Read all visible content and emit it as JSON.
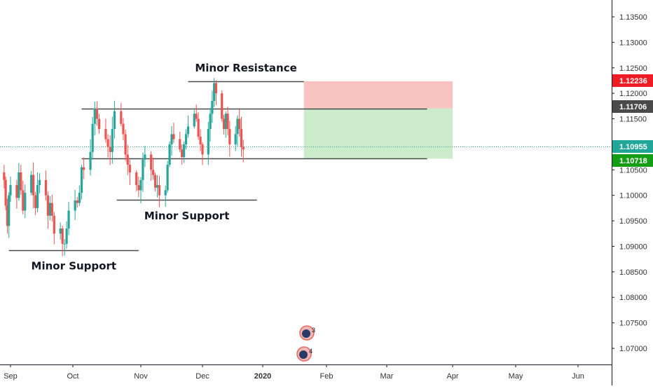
{
  "chart_data": {
    "type": "candlestick",
    "instrument_note": "",
    "y_axis": {
      "range": [
        1.0667,
        1.1395
      ],
      "ticks": [
        "1.13500",
        "1.13000",
        "1.12500",
        "1.12000",
        "1.11500",
        "1.11000",
        "1.10500",
        "1.10000",
        "1.09500",
        "1.09000",
        "1.08500",
        "1.08000",
        "1.07500",
        "1.07000"
      ],
      "tick_values": [
        1.135,
        1.13,
        1.125,
        1.12,
        1.115,
        1.11,
        1.105,
        1.1,
        1.095,
        1.09,
        1.085,
        1.08,
        1.075,
        1.07
      ]
    },
    "x_axis": {
      "labels": [
        "Sep",
        "Oct",
        "Nov",
        "Dec",
        "2020",
        "Feb",
        "Mar",
        "Apr",
        "May",
        "Jun"
      ],
      "label_dates": [
        "2019-09-01",
        "2019-10-01",
        "2019-11-01",
        "2019-12-01",
        "2020-01-01",
        "2020-02-01",
        "2020-03-01",
        "2020-04-01",
        "2020-05-01",
        "2020-06-01"
      ],
      "bold_labels": [
        "2020"
      ]
    },
    "candles_close_path": [
      1.103,
      1.098,
      1.094,
      1.1,
      1.102,
      1.0995,
      1.1045,
      1.101,
      1.097,
      1.1005,
      1.104,
      1.1,
      1.0975,
      1.102,
      1.103,
      1.1,
      1.096,
      1.0985,
      1.096,
      1.0925,
      1.0935,
      1.0905,
      1.0905,
      1.0935,
      1.097,
      1.099,
      1.0985,
      1.1005,
      1.1055,
      1.105,
      1.1085,
      1.114,
      1.117,
      1.115,
      1.113,
      1.111,
      1.1095,
      1.1085,
      1.113,
      1.1165,
      1.114,
      1.112,
      1.108,
      1.106,
      1.1045,
      1.102,
      1.101,
      1.103,
      1.107,
      1.108,
      1.105,
      1.104,
      1.1015,
      1.102,
      1.1,
      1.101,
      1.106,
      1.11,
      1.112,
      1.111,
      1.109,
      1.1075,
      1.11,
      1.112,
      1.1135,
      1.116,
      1.115,
      1.1115,
      1.11,
      1.108,
      1.113,
      1.116,
      1.1185,
      1.122,
      1.12,
      1.115,
      1.113,
      1.116,
      1.113,
      1.11,
      1.112,
      1.115,
      1.113,
      1.1095,
      1.109
    ],
    "candles_start": "2019-08-28",
    "last_price": 1.10955,
    "horizontal_lines": [
      {
        "label": "Minor Resistance",
        "price": 1.12236,
        "from": "2019-11-24",
        "to": "2020-01-21"
      },
      {
        "label": "",
        "price": 1.11706,
        "from": "2019-10-05",
        "to": "2020-03-20"
      },
      {
        "label": "",
        "price": 1.10718,
        "from": "2019-10-05",
        "to": "2020-03-20"
      },
      {
        "label": "Minor Support",
        "price": 1.0991,
        "from": "2019-10-21",
        "to": "2019-12-29"
      },
      {
        "label": "Minor Support",
        "price": 1.0893,
        "from": "2019-08-31",
        "to": "2019-10-31"
      }
    ],
    "position_zones": [
      {
        "kind": "stop",
        "from_price": 1.11706,
        "to_price": 1.12236,
        "from": "2020-01-21",
        "to": "2020-04-01",
        "color": "#f7a9a8"
      },
      {
        "kind": "target",
        "from_price": 1.10718,
        "to_price": 1.11706,
        "from": "2020-01-21",
        "to": "2020-04-01",
        "color": "#b5e2b3"
      }
    ],
    "price_badges": [
      {
        "value": "1.12236",
        "color": "#ee1c25"
      },
      {
        "value": "1.11706",
        "color": "#4a4a4a"
      },
      {
        "value": "1.10955",
        "color": "#22a699"
      },
      {
        "value": "1.10718",
        "color": "#169d16"
      }
    ],
    "event_markers": [
      {
        "count": "3",
        "date": "2020-01-20"
      },
      {
        "count": "4",
        "date": "2020-01-20"
      }
    ],
    "colors": {
      "up": "#26a69a",
      "down": "#ef5350",
      "price_line": "#26a69a",
      "axis_line": "#131722"
    }
  }
}
